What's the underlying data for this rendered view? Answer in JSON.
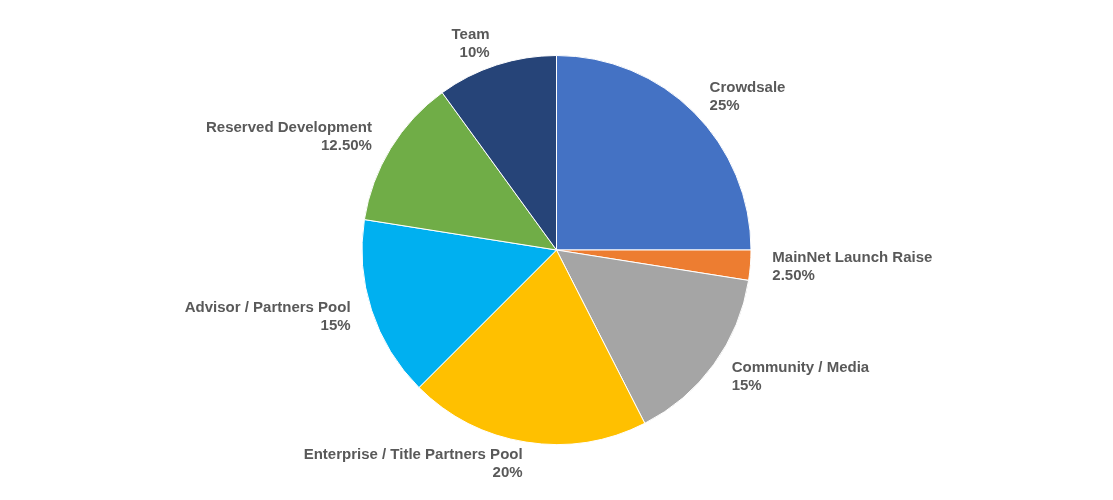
{
  "chart_data": {
    "type": "pie",
    "categories": [
      "Crowdsale",
      "MainNet Launch Raise",
      "Community / Media",
      "Enterprise / Title Partners Pool",
      "Advisor / Partners Pool",
      "Reserved Development",
      "Team"
    ],
    "values": [
      25,
      2.5,
      15,
      20,
      15,
      12.5,
      10
    ],
    "colors": [
      "#4472c4",
      "#ed7d31",
      "#a5a5a5",
      "#ffc000",
      "#00b0f0",
      "#70ad47",
      "#264478"
    ],
    "value_labels": [
      "25%",
      "2.50%",
      "15%",
      "20%",
      "15%",
      "12.50%",
      "10%"
    ],
    "legend": false
  }
}
